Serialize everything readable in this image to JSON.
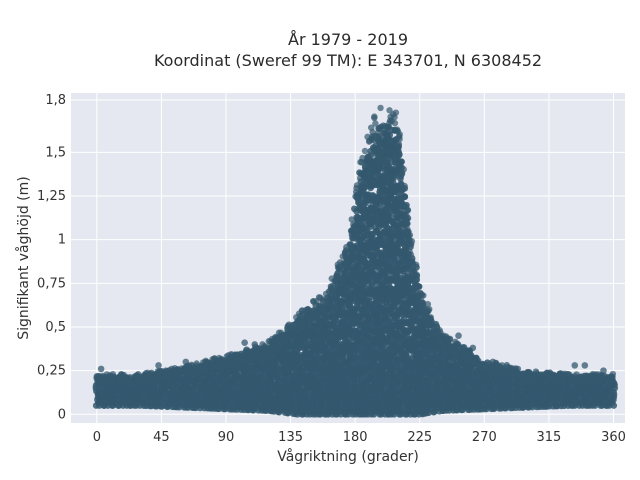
{
  "chart_data": {
    "type": "scatter",
    "title": "År 1979 - 2019",
    "subtitle": "Koordinat (Sweref 99 TM): E 343701, N 6308452",
    "xlabel": "Vågriktning (grader)",
    "ylabel": "Signifikant våghöjd (m)",
    "xlim": [
      -18,
      368
    ],
    "ylim": [
      -0.05,
      1.84
    ],
    "x_ticks": [
      0,
      45,
      90,
      135,
      180,
      225,
      270,
      315,
      360
    ],
    "x_tick_labels": [
      "0",
      "45",
      "90",
      "135",
      "180",
      "225",
      "270",
      "315",
      "360"
    ],
    "y_ticks": [
      0,
      0.25,
      0.5,
      0.75,
      1.0,
      1.25,
      1.5,
      1.8
    ],
    "y_tick_labels": [
      "0",
      "0,25",
      "0,5",
      "0,75",
      "1",
      "1,25",
      "1,5",
      "1,8"
    ],
    "grid": true,
    "marker_color": "#34586e",
    "background_color": "#e5e8f0",
    "envelope": {
      "x": [
        0,
        30,
        60,
        90,
        120,
        140,
        160,
        175,
        185,
        195,
        203,
        210,
        218,
        225,
        240,
        270,
        300,
        330,
        360
      ],
      "y_min": [
        0.05,
        0.05,
        0.04,
        0.03,
        0.02,
        0.0,
        0.0,
        0.0,
        0.0,
        0.0,
        0.0,
        0.0,
        0.0,
        0.0,
        0.02,
        0.03,
        0.04,
        0.05,
        0.05
      ],
      "y_max": [
        0.22,
        0.22,
        0.26,
        0.32,
        0.4,
        0.55,
        0.68,
        0.95,
        1.45,
        1.66,
        1.72,
        1.65,
        1.05,
        0.7,
        0.45,
        0.3,
        0.24,
        0.22,
        0.22
      ]
    },
    "outliers": [
      {
        "x": 3,
        "y": 0.26
      },
      {
        "x": 43,
        "y": 0.28
      },
      {
        "x": 62,
        "y": 0.3
      },
      {
        "x": 82,
        "y": 0.32
      },
      {
        "x": 103,
        "y": 0.41
      },
      {
        "x": 110,
        "y": 0.4
      },
      {
        "x": 133,
        "y": 0.46
      },
      {
        "x": 145,
        "y": 0.52
      },
      {
        "x": 232,
        "y": 0.55
      },
      {
        "x": 237,
        "y": 0.5
      },
      {
        "x": 252,
        "y": 0.45
      },
      {
        "x": 262,
        "y": 0.38
      },
      {
        "x": 276,
        "y": 0.3
      },
      {
        "x": 300,
        "y": 0.24
      },
      {
        "x": 333,
        "y": 0.28
      },
      {
        "x": 340,
        "y": 0.28
      },
      {
        "x": 353,
        "y": 0.25
      },
      {
        "x": 301,
        "y": 0.05
      }
    ]
  }
}
